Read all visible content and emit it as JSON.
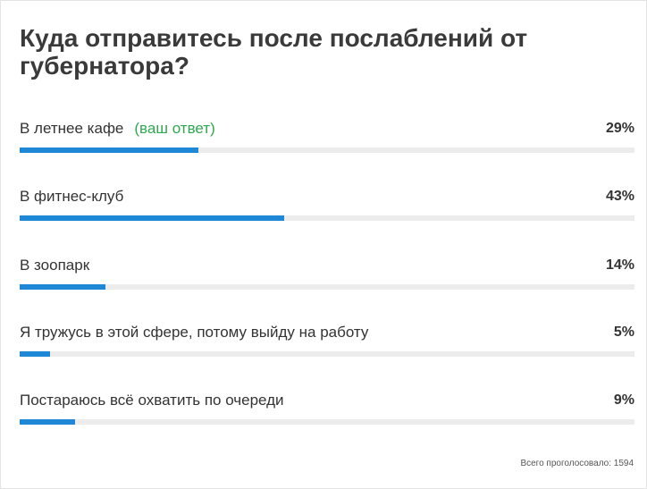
{
  "poll": {
    "title": "Куда отправитесь после послаблений от губернатора?",
    "options": [
      {
        "label": "В летнее кафе",
        "your_answer_label": "(ваш ответ)",
        "percent_text": "29%",
        "fill_fraction": 0.29
      },
      {
        "label": "В фитнес-клуб",
        "percent_text": "43%",
        "fill_fraction": 0.43
      },
      {
        "label": "В зоопарк",
        "percent_text": "14%",
        "fill_fraction": 0.14
      },
      {
        "label": "Я тружусь в этой сфере, потому выйду на работу",
        "percent_text": "5%",
        "fill_fraction": 0.05
      },
      {
        "label": "Постараюсь всё охватить по очереди",
        "percent_text": "9%",
        "fill_fraction": 0.09
      }
    ],
    "total_votes_text": "Всего проголосовало: 1594"
  },
  "colors": {
    "bar_fill": "#1e88d6",
    "bar_track": "#ececec",
    "your_answer": "#2fa84f",
    "title": "#3a3a3a"
  }
}
